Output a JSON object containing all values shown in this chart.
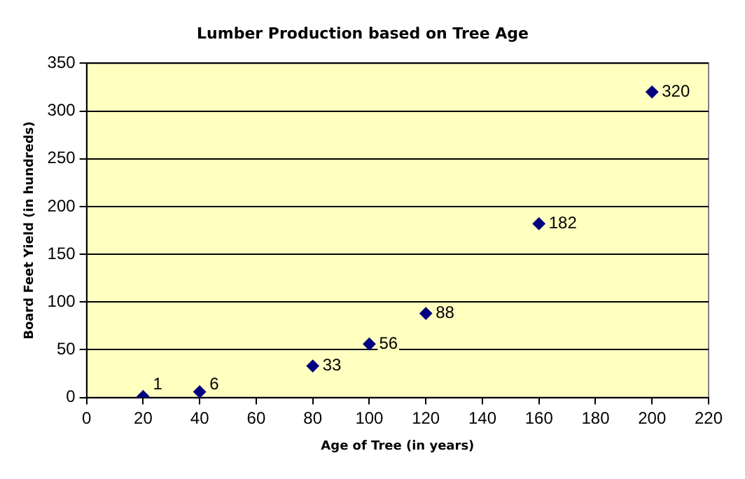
{
  "chart_data": {
    "type": "scatter",
    "title": "Lumber Production based on Tree Age",
    "xlabel": "Age of Tree (in years)",
    "ylabel": "Board Feet Yield (in hundreds)",
    "x": [
      20,
      40,
      80,
      100,
      120,
      160,
      200
    ],
    "series": [
      {
        "color": "#000080",
        "values": [
          1,
          6,
          33,
          56,
          88,
          182,
          320
        ]
      }
    ],
    "xlim": [
      0,
      220
    ],
    "xticks": [
      0,
      20,
      40,
      60,
      80,
      100,
      120,
      140,
      160,
      180,
      200,
      220
    ],
    "ylim": [
      0,
      350
    ],
    "yticks": [
      0,
      50,
      100,
      150,
      200,
      250,
      300,
      350
    ],
    "grid": "y",
    "legend": false,
    "marker": "diamond",
    "data_labels": true
  }
}
